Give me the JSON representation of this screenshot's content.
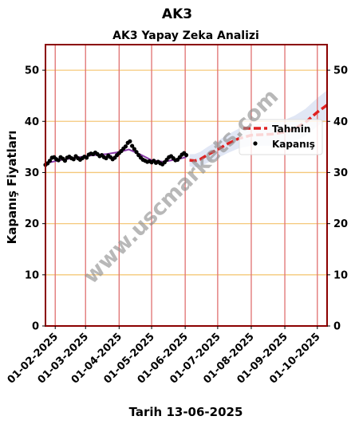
{
  "suptitle": "AK3",
  "chart_data": {
    "type": "line",
    "title": "AK3 Yapay Zeka Analizi",
    "xlabel": "Tarih 13-06-2025",
    "ylabel": "Kapanış Fiyatları",
    "ylim": [
      0,
      55
    ],
    "yticks": [
      0,
      10,
      20,
      30,
      40,
      50
    ],
    "xlim": [
      "2025-01-23",
      "2025-10-10"
    ],
    "xticks": [
      "2025-02-01",
      "2025-03-01",
      "2025-04-01",
      "2025-05-01",
      "2025-06-01",
      "2025-07-01",
      "2025-08-01",
      "2025-09-01",
      "2025-10-01"
    ],
    "xtick_labels": [
      "01-02-2025",
      "01-03-2025",
      "01-04-2025",
      "01-05-2025",
      "01-06-2025",
      "01-07-2025",
      "01-08-2025",
      "01-09-2025",
      "01-10-2025"
    ],
    "grid": true,
    "legend_position": "right",
    "watermark": "www.uscmarkets.com",
    "colors": {
      "frame": "#8b0000",
      "vgrid": "#e07070",
      "hgrid": "#f5c87a",
      "close": "#000000",
      "trend": "#8a3aa8",
      "forecast": "#e02020",
      "band": "#c8d4ec"
    },
    "series": [
      {
        "name": "Kapanış",
        "style": "scatter",
        "points": [
          [
            "2025-01-23",
            31.5
          ],
          [
            "2025-01-25",
            31.8
          ],
          [
            "2025-01-27",
            32.3
          ],
          [
            "2025-01-29",
            32.9
          ],
          [
            "2025-01-31",
            33.0
          ],
          [
            "2025-02-02",
            32.6
          ],
          [
            "2025-02-04",
            32.4
          ],
          [
            "2025-02-06",
            33.0
          ],
          [
            "2025-02-08",
            32.7
          ],
          [
            "2025-02-10",
            32.3
          ],
          [
            "2025-02-12",
            32.9
          ],
          [
            "2025-02-14",
            33.1
          ],
          [
            "2025-02-16",
            32.8
          ],
          [
            "2025-02-18",
            32.6
          ],
          [
            "2025-02-20",
            33.2
          ],
          [
            "2025-02-22",
            32.8
          ],
          [
            "2025-02-24",
            32.5
          ],
          [
            "2025-02-26",
            32.8
          ],
          [
            "2025-02-28",
            33.1
          ],
          [
            "2025-03-02",
            32.9
          ],
          [
            "2025-03-04",
            33.5
          ],
          [
            "2025-03-06",
            33.7
          ],
          [
            "2025-03-08",
            33.6
          ],
          [
            "2025-03-10",
            33.9
          ],
          [
            "2025-03-12",
            33.6
          ],
          [
            "2025-03-14",
            33.2
          ],
          [
            "2025-03-16",
            33.4
          ],
          [
            "2025-03-18",
            33.0
          ],
          [
            "2025-03-20",
            32.8
          ],
          [
            "2025-03-22",
            33.3
          ],
          [
            "2025-03-24",
            33.0
          ],
          [
            "2025-03-26",
            32.6
          ],
          [
            "2025-03-28",
            32.9
          ],
          [
            "2025-03-30",
            33.4
          ],
          [
            "2025-04-01",
            33.8
          ],
          [
            "2025-04-03",
            34.2
          ],
          [
            "2025-04-05",
            34.7
          ],
          [
            "2025-04-07",
            35.1
          ],
          [
            "2025-04-09",
            35.8
          ],
          [
            "2025-04-11",
            36.1
          ],
          [
            "2025-04-13",
            35.2
          ],
          [
            "2025-04-15",
            34.6
          ],
          [
            "2025-04-17",
            34.0
          ],
          [
            "2025-04-19",
            33.4
          ],
          [
            "2025-04-21",
            32.9
          ],
          [
            "2025-04-23",
            32.5
          ],
          [
            "2025-04-25",
            32.3
          ],
          [
            "2025-04-27",
            32.1
          ],
          [
            "2025-04-29",
            32.2
          ],
          [
            "2025-05-01",
            32.0
          ],
          [
            "2025-05-03",
            32.3
          ],
          [
            "2025-05-05",
            31.9
          ],
          [
            "2025-05-07",
            32.1
          ],
          [
            "2025-05-09",
            31.8
          ],
          [
            "2025-05-11",
            31.6
          ],
          [
            "2025-05-13",
            32.0
          ],
          [
            "2025-05-15",
            32.5
          ],
          [
            "2025-05-17",
            33.0
          ],
          [
            "2025-05-19",
            33.2
          ],
          [
            "2025-05-21",
            32.8
          ],
          [
            "2025-05-23",
            32.4
          ],
          [
            "2025-05-25",
            32.5
          ],
          [
            "2025-05-27",
            33.0
          ],
          [
            "2025-05-29",
            33.5
          ],
          [
            "2025-05-31",
            33.8
          ],
          [
            "2025-06-02",
            33.4
          ]
        ]
      },
      {
        "name": "",
        "style": "trend",
        "points": [
          [
            "2025-01-23",
            31.8
          ],
          [
            "2025-02-05",
            32.4
          ],
          [
            "2025-02-20",
            32.9
          ],
          [
            "2025-03-05",
            33.3
          ],
          [
            "2025-03-20",
            33.6
          ],
          [
            "2025-04-01",
            34.0
          ],
          [
            "2025-04-10",
            34.5
          ],
          [
            "2025-04-20",
            33.6
          ],
          [
            "2025-05-01",
            32.4
          ],
          [
            "2025-05-12",
            32.1
          ],
          [
            "2025-05-25",
            32.6
          ],
          [
            "2025-06-02",
            33.0
          ]
        ]
      },
      {
        "name": "Tahmin",
        "style": "dashed",
        "points": [
          [
            "2025-06-05",
            32.4
          ],
          [
            "2025-06-10",
            32.3
          ],
          [
            "2025-06-15",
            32.6
          ],
          [
            "2025-06-22",
            33.5
          ],
          [
            "2025-07-01",
            34.5
          ],
          [
            "2025-07-10",
            35.6
          ],
          [
            "2025-07-20",
            36.6
          ],
          [
            "2025-08-01",
            37.3
          ],
          [
            "2025-08-10",
            37.4
          ],
          [
            "2025-08-20",
            37.5
          ],
          [
            "2025-09-01",
            37.9
          ],
          [
            "2025-09-10",
            38.6
          ],
          [
            "2025-09-20",
            39.8
          ],
          [
            "2025-10-01",
            41.8
          ],
          [
            "2025-10-10",
            43.2
          ]
        ]
      }
    ]
  }
}
